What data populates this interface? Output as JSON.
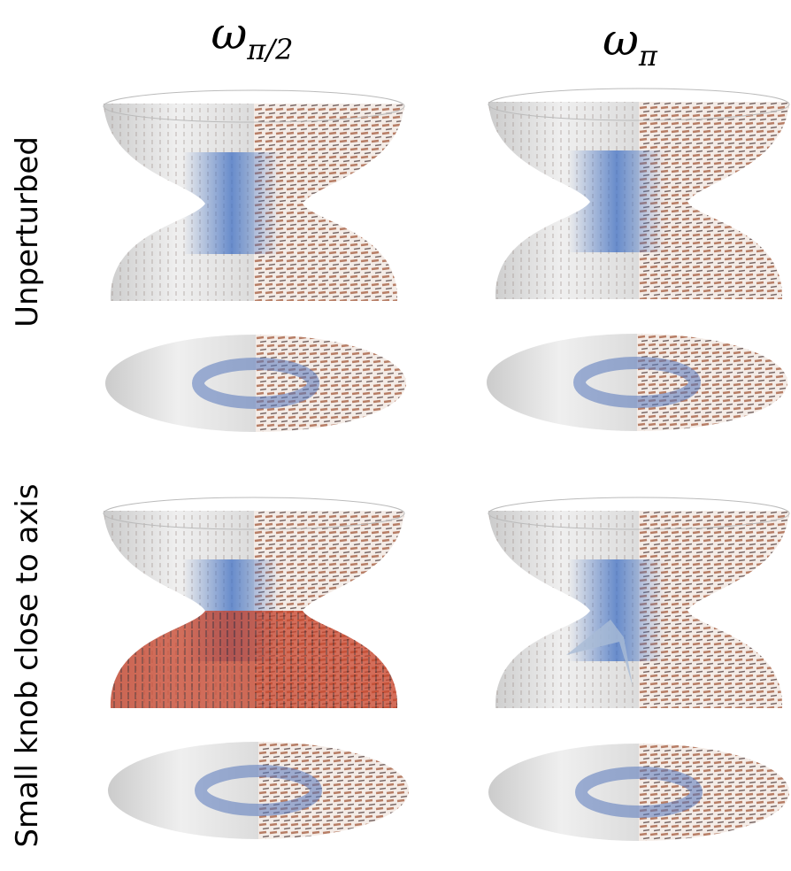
{
  "columns": [
    {
      "symbol": "ω",
      "subscript": "π/2"
    },
    {
      "symbol": "ω",
      "subscript": "π"
    }
  ],
  "rows": [
    {
      "label": "Unperturbed"
    },
    {
      "label": "Small knob close to axis"
    }
  ]
}
